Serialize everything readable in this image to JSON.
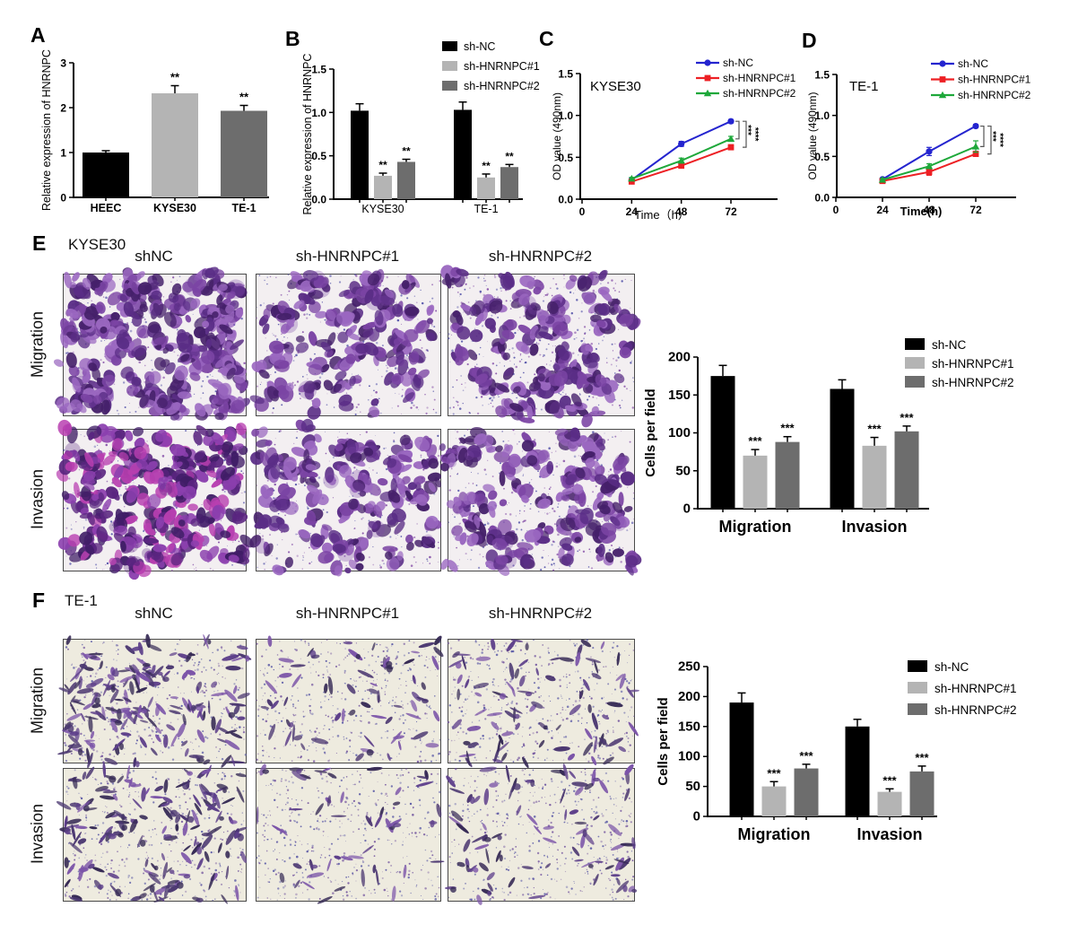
{
  "panels": {
    "A": {
      "label": "A"
    },
    "B": {
      "label": "B"
    },
    "C": {
      "label": "C"
    },
    "D": {
      "label": "D"
    },
    "E": {
      "label": "E",
      "title": "KYSE30",
      "columns": [
        "shNC",
        "sh-HNRNPC#1",
        "sh-HNRNPC#2"
      ],
      "rows": [
        "Migration",
        "Invasion"
      ]
    },
    "F": {
      "label": "F",
      "title": "TE-1",
      "columns": [
        "shNC",
        "sh-HNRNPC#1",
        "sh-HNRNPC#2"
      ],
      "rows": [
        "Migration",
        "Invasion"
      ]
    }
  },
  "colors": {
    "bar_black": "#000000",
    "bar_light_gray": "#b4b4b4",
    "bar_dark_gray": "#6d6d6d",
    "line_blue": "#2424cf",
    "line_red": "#ed2024",
    "line_green": "#1ea83a",
    "stain_purple": "#7b44a4",
    "micro_bg_kyse30": "#f3eff1",
    "micro_bg_te1": "#eeebdf"
  },
  "chart_data": [
    {
      "id": "A",
      "type": "bar",
      "ylabel": "Relative expression of HNRNPC",
      "categories": [
        "HEEC",
        "KYSE30",
        "TE-1"
      ],
      "values": [
        1.0,
        2.32,
        1.93
      ],
      "errors": [
        0.04,
        0.17,
        0.12
      ],
      "sig": [
        "",
        "**",
        "**"
      ],
      "bar_colors": [
        "#000000",
        "#b4b4b4",
        "#6d6d6d"
      ],
      "ylim": [
        0,
        3
      ],
      "yticks": [
        0,
        1,
        2,
        3
      ],
      "ytick_labels": [
        "0",
        "1",
        "2",
        "3"
      ]
    },
    {
      "id": "B",
      "type": "grouped_bar",
      "ylabel": "Relative expression of HNRNPC",
      "categories": [
        "KYSE30",
        "TE-1"
      ],
      "series": [
        {
          "name": "sh-NC",
          "color": "#000000",
          "values": [
            1.02,
            1.03
          ],
          "errors": [
            0.08,
            0.09
          ],
          "sig": [
            "",
            ""
          ]
        },
        {
          "name": "sh-HNRNPC#1",
          "color": "#b4b4b4",
          "values": [
            0.27,
            0.25
          ],
          "errors": [
            0.03,
            0.04
          ],
          "sig": [
            "**",
            "**"
          ]
        },
        {
          "name": "sh-HNRNPC#2",
          "color": "#6d6d6d",
          "values": [
            0.43,
            0.37
          ],
          "errors": [
            0.03,
            0.03
          ],
          "sig": [
            "**",
            "**"
          ]
        }
      ],
      "ylim": [
        0,
        1.5
      ],
      "yticks": [
        0,
        0.5,
        1.0,
        1.5
      ],
      "ytick_labels": [
        "0.0",
        "0.5",
        "1.0",
        "1.5"
      ],
      "legend_position": "top-right"
    },
    {
      "id": "C",
      "type": "line",
      "inner_title": "KYSE30",
      "ylabel": "OD value (490nm)",
      "xlabel": "Time（h）",
      "x": [
        24,
        48,
        72
      ],
      "xticks": [
        0,
        24,
        48,
        72
      ],
      "ylim": [
        0,
        1.5
      ],
      "yticks": [
        0,
        0.5,
        1.0,
        1.5
      ],
      "ytick_labels": [
        "0.0",
        "0.5",
        "1.0",
        "1.5"
      ],
      "series": [
        {
          "name": "sh-NC",
          "color": "#2424cf",
          "marker": "circle",
          "values": [
            0.23,
            0.66,
            0.93
          ],
          "errors": [
            0.015,
            0.03,
            0.02
          ]
        },
        {
          "name": "sh-HNRNPC#1",
          "color": "#ed2024",
          "marker": "square",
          "values": [
            0.21,
            0.4,
            0.62
          ],
          "errors": [
            0.015,
            0.03,
            0.03
          ]
        },
        {
          "name": "sh-HNRNPC#2",
          "color": "#1ea83a",
          "marker": "triangle",
          "values": [
            0.245,
            0.46,
            0.72
          ],
          "errors": [
            0.015,
            0.03,
            0.03
          ]
        }
      ],
      "sig_brackets": [
        {
          "to": "sh-HNRNPC#2",
          "label": "***"
        },
        {
          "to": "sh-HNRNPC#1",
          "label": "****"
        }
      ],
      "legend_position": "top-right"
    },
    {
      "id": "D",
      "type": "line",
      "inner_title": "TE-1",
      "ylabel": "OD value (490nm)",
      "xlabel": "Time(h)",
      "x": [
        24,
        48,
        72
      ],
      "xticks": [
        0,
        24,
        48,
        72
      ],
      "ylim": [
        0,
        1.5
      ],
      "yticks": [
        0,
        0.5,
        1.0,
        1.5
      ],
      "ytick_labels": [
        "0.0",
        "0.5",
        "1.0",
        "1.5"
      ],
      "series": [
        {
          "name": "sh-NC",
          "color": "#2424cf",
          "marker": "circle",
          "values": [
            0.22,
            0.56,
            0.87
          ],
          "errors": [
            0.015,
            0.05,
            0.02
          ]
        },
        {
          "name": "sh-HNRNPC#1",
          "color": "#ed2024",
          "marker": "square",
          "values": [
            0.2,
            0.31,
            0.53
          ],
          "errors": [
            0.015,
            0.04,
            0.03
          ]
        },
        {
          "name": "sh-HNRNPC#2",
          "color": "#1ea83a",
          "marker": "triangle",
          "values": [
            0.215,
            0.38,
            0.62
          ],
          "errors": [
            0.015,
            0.03,
            0.07
          ]
        }
      ],
      "sig_brackets": [
        {
          "to": "sh-HNRNPC#2",
          "label": "***"
        },
        {
          "to": "sh-HNRNPC#1",
          "label": "****"
        }
      ],
      "legend_position": "top-right"
    },
    {
      "id": "Ebar",
      "type": "grouped_bar",
      "ylabel": "Cells per field",
      "categories": [
        "Migration",
        "Invasion"
      ],
      "series": [
        {
          "name": "sh-NC",
          "color": "#000000",
          "values": [
            175,
            158
          ],
          "errors": [
            14,
            12
          ],
          "sig": [
            "",
            ""
          ]
        },
        {
          "name": "sh-HNRNPC#1",
          "color": "#b4b4b4",
          "values": [
            70,
            83
          ],
          "errors": [
            8,
            11
          ],
          "sig": [
            "***",
            "***"
          ]
        },
        {
          "name": "sh-HNRNPC#2",
          "color": "#6d6d6d",
          "values": [
            88,
            102
          ],
          "errors": [
            7,
            7
          ],
          "sig": [
            "***",
            "***"
          ]
        }
      ],
      "ylim": [
        0,
        200
      ],
      "yticks": [
        0,
        50,
        100,
        150,
        200
      ],
      "ytick_labels": [
        "0",
        "50",
        "100",
        "150",
        "200"
      ],
      "legend_position": "top-right"
    },
    {
      "id": "Fbar",
      "type": "grouped_bar",
      "ylabel": "Cells per field",
      "categories": [
        "Migration",
        "Invasion"
      ],
      "series": [
        {
          "name": "sh-NC",
          "color": "#000000",
          "values": [
            190,
            150
          ],
          "errors": [
            16,
            12
          ],
          "sig": [
            "",
            ""
          ]
        },
        {
          "name": "sh-HNRNPC#1",
          "color": "#b4b4b4",
          "values": [
            50,
            41
          ],
          "errors": [
            8,
            5
          ],
          "sig": [
            "***",
            "***"
          ]
        },
        {
          "name": "sh-HNRNPC#2",
          "color": "#6d6d6d",
          "values": [
            80,
            75
          ],
          "errors": [
            7,
            9
          ],
          "sig": [
            "***",
            "***"
          ]
        }
      ],
      "ylim": [
        0,
        250
      ],
      "yticks": [
        0,
        50,
        100,
        150,
        200,
        250
      ],
      "ytick_labels": [
        "0",
        "50",
        "100",
        "150",
        "200",
        "250"
      ],
      "legend_position": "top-right"
    }
  ],
  "micrographs": {
    "E": {
      "style": "cluster",
      "bg": "#f3eff1",
      "speckles": 300,
      "speckle_colors": [
        "#3c3c9e",
        "#7a3fa0"
      ],
      "palette": [
        "#7b44a4",
        "#5a2d86",
        "#9a67c0",
        "#45206a"
      ],
      "cells": [
        [
          {
            "seed": 101,
            "density": 150,
            "speckles": 260
          },
          {
            "seed": 102,
            "density": 78,
            "speckles": 300
          },
          {
            "seed": 103,
            "density": 86,
            "speckles": 430
          }
        ],
        [
          {
            "seed": 104,
            "density": 142,
            "speckles": 260,
            "palette": [
              "#5a2580",
              "#8b3fae",
              "#b83fb0",
              "#3f1d66"
            ]
          },
          {
            "seed": 105,
            "density": 86,
            "speckles": 300
          },
          {
            "seed": 106,
            "density": 96,
            "speckles": 380
          }
        ]
      ]
    },
    "F": {
      "style": "spindle",
      "bg": "#eeebdf",
      "speckles": 420,
      "speckle_colors": [
        "#4a4aa0",
        "#6a4a9a"
      ],
      "palette": [
        "#4a3670",
        "#5d3f8a",
        "#362a55",
        "#7b54a8"
      ],
      "cells": [
        [
          {
            "seed": 201,
            "density": 175,
            "speckles": 390
          },
          {
            "seed": 202,
            "density": 62,
            "speckles": 460
          },
          {
            "seed": 203,
            "density": 85,
            "speckles": 470
          }
        ],
        [
          {
            "seed": 204,
            "density": 150,
            "speckles": 430
          },
          {
            "seed": 205,
            "density": 50,
            "speckles": 470
          },
          {
            "seed": 206,
            "density": 78,
            "speckles": 450
          }
        ]
      ]
    }
  }
}
